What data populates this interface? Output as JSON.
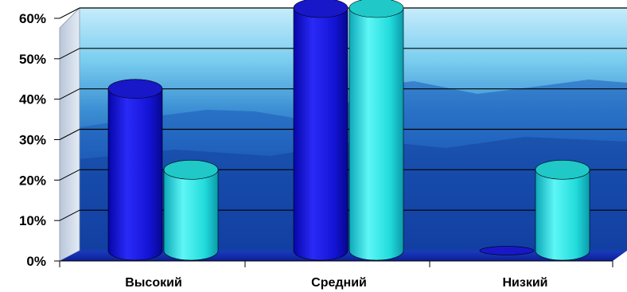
{
  "chart_data": {
    "type": "bar",
    "style": "3d-cylinder",
    "title": "",
    "xlabel": "",
    "ylabel": "",
    "categories": [
      "Высокий",
      "Средний",
      "Низкий"
    ],
    "ylim": [
      0,
      60
    ],
    "yticks": [
      "0%",
      "10%",
      "20%",
      "30%",
      "40%",
      "50%",
      "60%"
    ],
    "grid": true,
    "legend": "none",
    "background": "blue-mountain-gradient",
    "series": [
      {
        "color": "#1010e0",
        "values": [
          40,
          60,
          0
        ]
      },
      {
        "color": "#20e0e0",
        "values": [
          20,
          60,
          20
        ]
      }
    ]
  }
}
